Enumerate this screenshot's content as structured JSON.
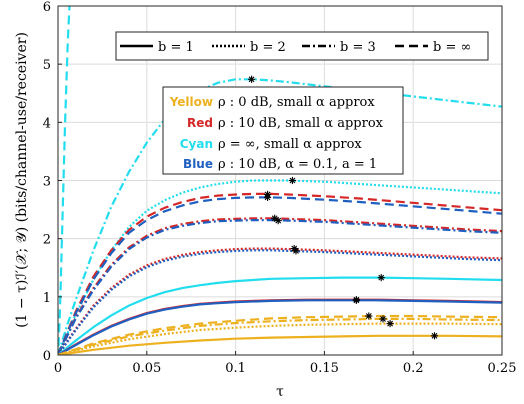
{
  "chart_data": {
    "type": "line",
    "xlabel": "τ",
    "ylabel": "(1 − τ)ℐ′(𝒳; 𝒴) (bits/channel-use/receiver)",
    "xlim": [
      0,
      0.25
    ],
    "ylim": [
      0,
      6
    ],
    "xticks": [
      "0",
      "0.05",
      "0.1",
      "0.15",
      "0.2",
      "0.25"
    ],
    "yticks": [
      "0",
      "1",
      "2",
      "3",
      "4",
      "5",
      "6"
    ],
    "grid": true,
    "legend_b": {
      "placement": "top",
      "entries": [
        {
          "style": "solid",
          "label": "b = 1"
        },
        {
          "style": "dotted",
          "label": "b = 2"
        },
        {
          "style": "dashdot",
          "label": "b = 3"
        },
        {
          "style": "dashed",
          "label": "b = ∞"
        }
      ]
    },
    "legend_color": {
      "placement": "center-top",
      "entries": [
        {
          "color_word": "Yellow",
          "color": "#EDB120",
          "text": "ρ : 0 dB, small α approx"
        },
        {
          "color_word": "Red",
          "color": "#D62728",
          "text": "ρ : 10 dB, small α approx"
        },
        {
          "color_word": "Cyan",
          "color": "#22DDEE",
          "text": "ρ = ∞, small α approx"
        },
        {
          "color_word": "Blue",
          "color": "#1F5FBF",
          "text": "ρ : 10 dB, α = 0.1, a = 1"
        }
      ]
    },
    "series": [
      {
        "color": "#22DDEE",
        "style": "dashed",
        "x": [
          0.0003,
          0.0008,
          0.0015,
          0.0025,
          0.004,
          0.0055,
          0.0065
        ],
        "y": [
          0.15,
          0.5,
          1.2,
          2.3,
          4.0,
          5.4,
          6.0
        ]
      },
      {
        "color": "#22DDEE",
        "style": "dashdot",
        "x": [
          0.0,
          0.005,
          0.01,
          0.02,
          0.03,
          0.04,
          0.05,
          0.06,
          0.07,
          0.08,
          0.09,
          0.1,
          0.11,
          0.12,
          0.13,
          0.15,
          0.17,
          0.19,
          0.21,
          0.23,
          0.25
        ],
        "y": [
          0.0,
          0.5,
          0.95,
          1.8,
          2.55,
          3.15,
          3.65,
          4.05,
          4.35,
          4.55,
          4.68,
          4.74,
          4.74,
          4.72,
          4.69,
          4.62,
          4.55,
          4.48,
          4.41,
          4.34,
          4.27
        ]
      },
      {
        "color": "#22DDEE",
        "style": "dotted",
        "x": [
          0.0,
          0.01,
          0.02,
          0.03,
          0.04,
          0.05,
          0.06,
          0.07,
          0.08,
          0.09,
          0.1,
          0.11,
          0.12,
          0.13,
          0.15,
          0.17,
          0.19,
          0.21,
          0.23,
          0.25
        ],
        "y": [
          0.0,
          0.7,
          1.3,
          1.8,
          2.2,
          2.48,
          2.66,
          2.79,
          2.88,
          2.94,
          2.98,
          3.0,
          3.0,
          3.0,
          2.98,
          2.94,
          2.9,
          2.86,
          2.82,
          2.78
        ]
      },
      {
        "color": "#D62728",
        "style": "dashed",
        "x": [
          0.0,
          0.01,
          0.02,
          0.03,
          0.04,
          0.05,
          0.06,
          0.07,
          0.08,
          0.09,
          0.1,
          0.11,
          0.12,
          0.13,
          0.15,
          0.17,
          0.19,
          0.21,
          0.23,
          0.25
        ],
        "y": [
          0.0,
          0.75,
          1.35,
          1.8,
          2.15,
          2.38,
          2.53,
          2.63,
          2.7,
          2.74,
          2.76,
          2.77,
          2.77,
          2.76,
          2.73,
          2.69,
          2.64,
          2.59,
          2.54,
          2.49
        ]
      },
      {
        "color": "#1F5FBF",
        "style": "dashed",
        "x": [
          0.0,
          0.01,
          0.02,
          0.03,
          0.04,
          0.05,
          0.06,
          0.07,
          0.08,
          0.09,
          0.1,
          0.11,
          0.12,
          0.13,
          0.15,
          0.17,
          0.19,
          0.21,
          0.23,
          0.25
        ],
        "y": [
          0.0,
          0.72,
          1.3,
          1.75,
          2.1,
          2.32,
          2.47,
          2.57,
          2.64,
          2.68,
          2.7,
          2.71,
          2.71,
          2.7,
          2.67,
          2.63,
          2.58,
          2.53,
          2.48,
          2.43
        ]
      },
      {
        "color": "#D62728",
        "style": "dashdot",
        "x": [
          0.0,
          0.01,
          0.02,
          0.03,
          0.04,
          0.05,
          0.06,
          0.07,
          0.08,
          0.09,
          0.1,
          0.11,
          0.12,
          0.13,
          0.15,
          0.17,
          0.19,
          0.21,
          0.23,
          0.25
        ],
        "y": [
          0.0,
          0.65,
          1.15,
          1.55,
          1.85,
          2.05,
          2.18,
          2.25,
          2.3,
          2.33,
          2.34,
          2.35,
          2.35,
          2.34,
          2.32,
          2.28,
          2.24,
          2.2,
          2.16,
          2.13
        ]
      },
      {
        "color": "#1F5FBF",
        "style": "dashdot",
        "x": [
          0.0,
          0.01,
          0.02,
          0.03,
          0.04,
          0.05,
          0.06,
          0.07,
          0.08,
          0.09,
          0.1,
          0.11,
          0.12,
          0.13,
          0.15,
          0.17,
          0.19,
          0.21,
          0.23,
          0.25
        ],
        "y": [
          0.0,
          0.63,
          1.12,
          1.52,
          1.82,
          2.02,
          2.15,
          2.22,
          2.27,
          2.3,
          2.31,
          2.32,
          2.32,
          2.31,
          2.29,
          2.25,
          2.21,
          2.17,
          2.13,
          2.1
        ]
      },
      {
        "color": "#D62728",
        "style": "dotted",
        "x": [
          0.0,
          0.01,
          0.02,
          0.03,
          0.04,
          0.05,
          0.06,
          0.07,
          0.08,
          0.09,
          0.1,
          0.11,
          0.12,
          0.13,
          0.15,
          0.17,
          0.19,
          0.21,
          0.23,
          0.25
        ],
        "y": [
          0.0,
          0.45,
          0.85,
          1.15,
          1.38,
          1.54,
          1.65,
          1.72,
          1.77,
          1.8,
          1.82,
          1.83,
          1.83,
          1.82,
          1.8,
          1.77,
          1.74,
          1.71,
          1.68,
          1.66
        ]
      },
      {
        "color": "#1F5FBF",
        "style": "dotted",
        "x": [
          0.0,
          0.01,
          0.02,
          0.03,
          0.04,
          0.05,
          0.06,
          0.07,
          0.08,
          0.09,
          0.1,
          0.11,
          0.12,
          0.13,
          0.15,
          0.17,
          0.19,
          0.21,
          0.23,
          0.25
        ],
        "y": [
          0.0,
          0.43,
          0.82,
          1.12,
          1.35,
          1.51,
          1.62,
          1.69,
          1.74,
          1.77,
          1.79,
          1.8,
          1.8,
          1.79,
          1.77,
          1.74,
          1.71,
          1.68,
          1.65,
          1.63
        ]
      },
      {
        "color": "#22DDEE",
        "style": "solid",
        "x": [
          0.0,
          0.01,
          0.02,
          0.03,
          0.04,
          0.05,
          0.06,
          0.07,
          0.08,
          0.09,
          0.1,
          0.12,
          0.14,
          0.16,
          0.18,
          0.2,
          0.22,
          0.25
        ],
        "y": [
          0.0,
          0.25,
          0.48,
          0.68,
          0.85,
          0.98,
          1.08,
          1.15,
          1.2,
          1.24,
          1.27,
          1.31,
          1.32,
          1.33,
          1.33,
          1.32,
          1.31,
          1.29
        ]
      },
      {
        "color": "#D62728",
        "style": "solid",
        "x": [
          0.0,
          0.01,
          0.02,
          0.03,
          0.04,
          0.05,
          0.06,
          0.07,
          0.08,
          0.09,
          0.1,
          0.12,
          0.14,
          0.16,
          0.18,
          0.2,
          0.22,
          0.25
        ],
        "y": [
          0.0,
          0.18,
          0.35,
          0.5,
          0.62,
          0.72,
          0.79,
          0.84,
          0.88,
          0.9,
          0.92,
          0.94,
          0.95,
          0.95,
          0.95,
          0.94,
          0.93,
          0.91
        ]
      },
      {
        "color": "#1F5FBF",
        "style": "solid",
        "x": [
          0.0,
          0.01,
          0.02,
          0.03,
          0.04,
          0.05,
          0.06,
          0.07,
          0.08,
          0.09,
          0.1,
          0.12,
          0.14,
          0.16,
          0.18,
          0.2,
          0.22,
          0.25
        ],
        "y": [
          0.0,
          0.17,
          0.34,
          0.49,
          0.61,
          0.71,
          0.78,
          0.83,
          0.87,
          0.89,
          0.91,
          0.93,
          0.94,
          0.94,
          0.94,
          0.93,
          0.92,
          0.9
        ]
      },
      {
        "color": "#EDB120",
        "style": "dashed",
        "x": [
          0.0,
          0.02,
          0.04,
          0.06,
          0.08,
          0.1,
          0.12,
          0.14,
          0.16,
          0.18,
          0.2,
          0.22,
          0.25
        ],
        "y": [
          0.0,
          0.2,
          0.35,
          0.46,
          0.54,
          0.59,
          0.63,
          0.65,
          0.66,
          0.67,
          0.67,
          0.66,
          0.65
        ]
      },
      {
        "color": "#EDB120",
        "style": "dashdot",
        "x": [
          0.0,
          0.02,
          0.04,
          0.06,
          0.08,
          0.1,
          0.12,
          0.14,
          0.16,
          0.18,
          0.2,
          0.22,
          0.25
        ],
        "y": [
          0.0,
          0.18,
          0.32,
          0.42,
          0.5,
          0.55,
          0.58,
          0.6,
          0.61,
          0.62,
          0.62,
          0.61,
          0.6
        ]
      },
      {
        "color": "#EDB120",
        "style": "dotted",
        "x": [
          0.0,
          0.02,
          0.04,
          0.06,
          0.08,
          0.1,
          0.12,
          0.14,
          0.16,
          0.18,
          0.2,
          0.22,
          0.25
        ],
        "y": [
          0.0,
          0.15,
          0.27,
          0.36,
          0.43,
          0.47,
          0.5,
          0.52,
          0.53,
          0.54,
          0.54,
          0.54,
          0.53
        ]
      },
      {
        "color": "#EDB120",
        "style": "solid",
        "x": [
          0.0,
          0.02,
          0.04,
          0.06,
          0.08,
          0.1,
          0.12,
          0.14,
          0.16,
          0.18,
          0.2,
          0.22,
          0.25
        ],
        "y": [
          0.0,
          0.09,
          0.16,
          0.21,
          0.25,
          0.28,
          0.3,
          0.31,
          0.32,
          0.33,
          0.33,
          0.33,
          0.32
        ]
      }
    ],
    "markers": {
      "symbol": "asterisk",
      "points": [
        {
          "x": 0.109,
          "y": 4.74
        },
        {
          "x": 0.132,
          "y": 3.0
        },
        {
          "x": 0.118,
          "y": 2.76
        },
        {
          "x": 0.118,
          "y": 2.71
        },
        {
          "x": 0.122,
          "y": 2.35
        },
        {
          "x": 0.124,
          "y": 2.31
        },
        {
          "x": 0.133,
          "y": 1.83
        },
        {
          "x": 0.134,
          "y": 1.79
        },
        {
          "x": 0.182,
          "y": 1.33
        },
        {
          "x": 0.168,
          "y": 0.95
        },
        {
          "x": 0.168,
          "y": 0.94
        },
        {
          "x": 0.175,
          "y": 0.67
        },
        {
          "x": 0.183,
          "y": 0.62
        },
        {
          "x": 0.187,
          "y": 0.54
        },
        {
          "x": 0.212,
          "y": 0.33
        }
      ]
    }
  }
}
